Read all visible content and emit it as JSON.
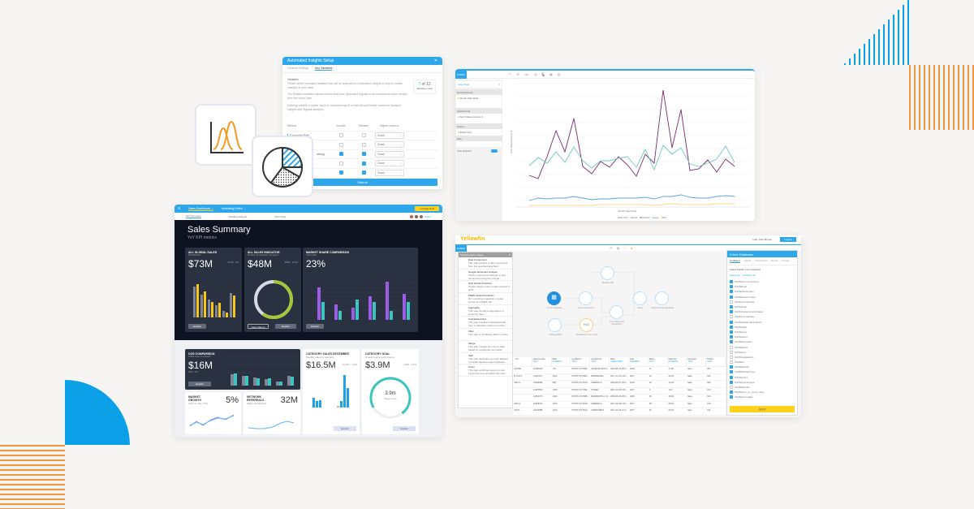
{
  "colors": {
    "primary_blue": "#2da7ea",
    "accent_orange": "#f2953d",
    "accent_yellow": "#ffd11a",
    "dark_bg": "#0d1321"
  },
  "icon_tiles": [
    {
      "icon": "bell-curve-chart-icon"
    },
    {
      "icon": "pie-chart-icon"
    }
  ],
  "insights_setup": {
    "title": "Automated Insights Setup",
    "close": "✕",
    "tabs": [
      {
        "label": "General Settings",
        "active": false
      },
      {
        "label": "Key Variables",
        "active": true
      }
    ],
    "section_title": "Variables",
    "paragraphs": [
      "Please select important variables that will be analysed by Automated Insights to help to explain changes in your data.",
      "The Related checkbox allows metrics that have generated Signals to be compared to other metrics from the same View.",
      "Defining whether a higher value is considered good or bad will add further context to Assisted Insights and Signals analyses."
    ],
    "counter": {
      "current": "7",
      "of": "of 12",
      "caption": "Variables used"
    },
    "columns": [
      "Metrics",
      "Include",
      "Related",
      "Higher value is"
    ],
    "rows": [
      {
        "metric": "Exchange Rate",
        "include": false,
        "related": false,
        "higher": "Good"
      },
      {
        "metric": "",
        "include": false,
        "related": false,
        "higher": "Good"
      },
      {
        "metric": "rency)",
        "include": true,
        "related": true,
        "higher": "Good"
      },
      {
        "metric": "",
        "include": false,
        "related": true,
        "higher": "Good"
      },
      {
        "metric": "",
        "include": true,
        "related": true,
        "higher": "Good"
      }
    ],
    "submit": "Submit"
  },
  "dashboard": {
    "top_tabs": [
      "Sales Dashboard ⌄",
      "Marketing KWeb ⌄"
    ],
    "create_new": "+ Create New",
    "sub_tabs": [
      "KPI Summary",
      "Detailed Analysis",
      "Sub Three"
    ],
    "share": "Share",
    "title": "Sales Summary",
    "subtitle": "YoY KPI metrics",
    "kpis": [
      {
        "title": "ALL GLOBAL SALES",
        "sub": "KPI Estimator",
        "value": "$73M",
        "delta": "69.2M ↑ 9%",
        "button": "Explain"
      },
      {
        "title": "ALL SALES INDICATOR",
        "sub": "All sales, all categories, all regions",
        "value": "$48M",
        "delta": "$53M ↓ 13.5%",
        "buttons": [
          "Open Report",
          "Explain"
        ]
      },
      {
        "title": "MARKET SHARE COMPARISON",
        "sub": "Year to date",
        "value": "23%",
        "button": "Explain"
      },
      {
        "title": "COS COMPARISON",
        "sub": "Global costs comparison",
        "value": "$16M",
        "delta": "14M ↑ 17%",
        "button": "Explain"
      },
      {
        "title": "CATEGORY SALES DECEMBER",
        "sub": "Monthly sales by category",
        "value": "$16.5M",
        "delta": "16.2M ↑ 4.3%",
        "button": "Explain"
      },
      {
        "title": "CATEGORY GOAL",
        "sub": "Overall yearly performance",
        "value": "$3.9M",
        "delta": "4.9M ↑ 12%",
        "gauge_value": "3.9m",
        "gauge_target": "Target 4.9m",
        "button": "Explain"
      },
      {
        "title": "MARKET GROWTH",
        "sub": "Year on Year YTD",
        "value": "5%",
        "delta": "4.8%M ↑ 4%"
      },
      {
        "title": "NETWORK REFERRALS",
        "sub": "Sales contribution",
        "value": "32M",
        "delta": "30M ↑ 6.7%"
      }
    ],
    "month_labels": [
      "Jan",
      "Feb",
      "Mar",
      "Apr",
      "May",
      "Jun"
    ]
  },
  "chart_window": {
    "publish": "Publish",
    "sidebar": {
      "chart_type": "Auto Chart",
      "horizontal_axis": "Horizontal Axis",
      "h_field": "Month Start Date",
      "vertical_axis": "Vertical Axis",
      "v_field": "Sum Sales Amount 0",
      "colour": "Colour",
      "colour_field": "Bottle Size",
      "size": "Size",
      "auto_refresh": "Auto Refresh"
    },
    "y_label": "Sum Sales Amount $",
    "x_label": "Month Start Date",
    "legend": [
      "Bottle Size:",
      "Small",
      "Standard",
      "Large",
      "Mini"
    ]
  },
  "pipeline_window": {
    "logo": "Yellowfin",
    "publish": "Publish",
    "user_label": "User: Dan Murray",
    "logout": "Logout",
    "steps_title": "Transformation Steps",
    "steps": [
      {
        "name": "Date Component",
        "desc": "This step extracts a date component from the specified date field."
      },
      {
        "name": "Google Sentiment Analysis",
        "desc": "Perform sentiment analysis on text documents using the Google..."
      },
      {
        "name": "H2O Model Prediction",
        "desc": "Predict values using models created in H2O"
      },
      {
        "name": "PMML Model Prediction",
        "desc": "Run predictions against a model stored as a PMML file."
      },
      {
        "name": "Aggregate",
        "desc": "This step provides aggregates of incoming data"
      },
      {
        "name": "Calculated Field",
        "desc": "This step creates a calculated field from a calculation based on other..."
      },
      {
        "name": "Filter",
        "desc": "This step is for filtering data in a step."
      },
      {
        "name": "Merge",
        "desc": "This step merges two sets of data based on configured Join fields"
      },
      {
        "name": "Split",
        "desc": "This step duplicates an input dataset to create identical output datasets"
      },
      {
        "name": "Union",
        "desc": "This step combines data from two inputs into one set which has rows..."
      }
    ],
    "nodes": [
      "Weather API",
      "Crime Database",
      "Date Conversion",
      "Crime Data with Predictions",
      "Merge",
      "Output to SQL Database",
      "Training Data",
      "Predicted Crime Count"
    ],
    "grid_columns": [
      {
        "name": "...ion",
        "type": ""
      },
      {
        "name": "Casenumber",
        "type": "TEXT"
      },
      {
        "name": "Beat",
        "type": "NUMERIC"
      },
      {
        "name": "LocationC...",
        "type": "TEXT"
      },
      {
        "name": "Locationde...",
        "type": "TEXT"
      },
      {
        "name": "Date",
        "type": "TIMESTAMP"
      },
      {
        "name": "Year",
        "type": "NUMERIC"
      },
      {
        "name": "Ward",
        "type": "TEXT"
      },
      {
        "name": "Ward No",
        "type": "NUMERIC"
      },
      {
        "name": "Domestic",
        "type": "TEXT"
      },
      {
        "name": "District",
        "type": "TEXT"
      }
    ],
    "grid_rows": [
      [
        "ULPRE...",
        "JA087423",
        "721",
        "POINT(-87.6992...",
        "VEHICLE NON-C...",
        "2018-06-11 08:3...",
        "2018",
        "17",
        "17.00",
        "false",
        "007"
      ],
      [
        "R CONT...",
        "JA110977",
        "2212",
        "POINT(-87.6801...",
        "RESIDENCE",
        "2017-12-22 14:0...",
        "2017",
        "34",
        "34.00",
        "false",
        "022"
      ],
      [
        "TED G...",
        "JA086380",
        "925",
        "POINT(-87.6470...",
        "SIDEWALK",
        "2018-05-17 05:3...",
        "2018",
        "15",
        "15.00",
        "false",
        "009"
      ],
      [
        "",
        "JA487553",
        "1025",
        "POINT(-87.7062...",
        "OTHER",
        "2017-10-26 13:0...",
        "2017",
        "3",
        "3.00",
        "false",
        "010"
      ],
      [
        "",
        "JA501373",
        "2433",
        "POINT(-87.6585...",
        "RESIDENTIAL YA...",
        "2018-06-29 08:1...",
        "2018",
        "49",
        "49.00",
        "false",
        "024"
      ],
      [
        "TED H...",
        "JA465474",
        "1034",
        "POINT(-87.6418...",
        "SIDEWALK",
        "2017-09-05 13:0...",
        "2017",
        "28",
        "28.00",
        "false",
        "010"
      ],
      [
        "CANT...",
        "JA404985",
        "1233",
        "POINT(-87.6622...",
        "APARTMENT",
        "2017-11-20 12:4...",
        "2017",
        "26",
        "26.00",
        "false",
        "012"
      ]
    ],
    "db_panel": {
      "title": "Crime Database",
      "tabs": [
        "Configure",
        "Fields",
        "Transforms",
        "Errors",
        "Details"
      ],
      "instruction": "Select Fields to be extracted",
      "select_all": "Select All",
      "deselect_all": "Deselect All",
      "fields": [
        {
          "name": "f12060communityarea",
          "on": true
        },
        {
          "name": "f12060beat",
          "on": true
        },
        {
          "name": "f12060description",
          "on": true
        },
        {
          "name": "f12060casenumber",
          "on": true
        },
        {
          "name": "f12061xcoordinate",
          "on": false
        },
        {
          "name": "f12061beat",
          "on": true
        },
        {
          "name": "f12061locationcoordinates",
          "on": true
        },
        {
          "name": "f12061ycoordinate",
          "on": false
        },
        {
          "name": "f12061locationdescription",
          "on": true
        },
        {
          "name": "f12062date",
          "on": true
        },
        {
          "name": "f12062year",
          "on": true
        },
        {
          "name": "f12062ward",
          "on": true
        },
        {
          "name": "f12062domestic",
          "on": true
        },
        {
          "name": "f12062block",
          "on": false
        },
        {
          "name": "f12063iucr",
          "on": false
        },
        {
          "name": "f12063updatedon",
          "on": false
        },
        {
          "name": "f12063id",
          "on": false
        },
        {
          "name": "f12063district",
          "on": true
        },
        {
          "name": "f12063fbicodeType",
          "on": true
        },
        {
          "name": "f12064point",
          "on": true
        },
        {
          "name": "f12064primarytype",
          "on": true
        },
        {
          "name": "f12064fbicode",
          "on": false
        },
        {
          "name": "f12064time_to_arrest_days",
          "on": true
        },
        {
          "name": "f12064arrestdate",
          "on": true
        }
      ],
      "apply": "Apply"
    }
  }
}
